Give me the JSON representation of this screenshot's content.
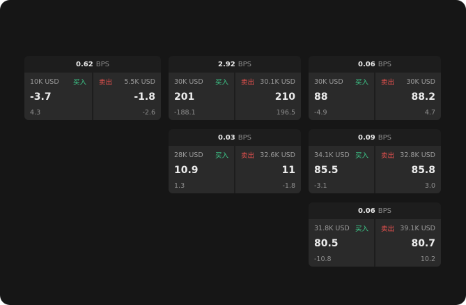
{
  "colors": {
    "buy": "#3ecf8e",
    "sell": "#ef5350",
    "background": "#161616",
    "panel": "#2a2a2a"
  },
  "cards": [
    {
      "spread": "0.62",
      "unit": "BPS",
      "buy": {
        "notional": "10K USD",
        "label": "买入",
        "price": "-3.7",
        "delta": "4.3"
      },
      "sell": {
        "label": "卖出",
        "notional": "5.5K USD",
        "price": "-1.8",
        "delta": "-2.6"
      }
    },
    {
      "spread": "2.92",
      "unit": "BPS",
      "buy": {
        "notional": "30K USD",
        "label": "买入",
        "price": "201",
        "delta": "-188.1"
      },
      "sell": {
        "label": "卖出",
        "notional": "30.1K USD",
        "price": "210",
        "delta": "196.5"
      }
    },
    {
      "spread": "0.06",
      "unit": "BPS",
      "buy": {
        "notional": "30K USD",
        "label": "买入",
        "price": "88",
        "delta": "-4.9"
      },
      "sell": {
        "label": "卖出",
        "notional": "30K USD",
        "price": "88.2",
        "delta": "4.7"
      }
    },
    {
      "spread": "0.03",
      "unit": "BPS",
      "buy": {
        "notional": "28K USD",
        "label": "买入",
        "price": "10.9",
        "delta": "1.3"
      },
      "sell": {
        "label": "卖出",
        "notional": "32.6K USD",
        "price": "11",
        "delta": "-1.8"
      }
    },
    {
      "spread": "0.09",
      "unit": "BPS",
      "buy": {
        "notional": "34.1K USD",
        "label": "买入",
        "price": "85.5",
        "delta": "-3.1"
      },
      "sell": {
        "label": "卖出",
        "notional": "32.8K USD",
        "price": "85.8",
        "delta": "3.0"
      }
    },
    {
      "spread": "0.06",
      "unit": "BPS",
      "buy": {
        "notional": "31.8K USD",
        "label": "买入",
        "price": "80.5",
        "delta": "-10.8"
      },
      "sell": {
        "label": "卖出",
        "notional": "39.1K USD",
        "price": "80.7",
        "delta": "10.2"
      }
    }
  ]
}
